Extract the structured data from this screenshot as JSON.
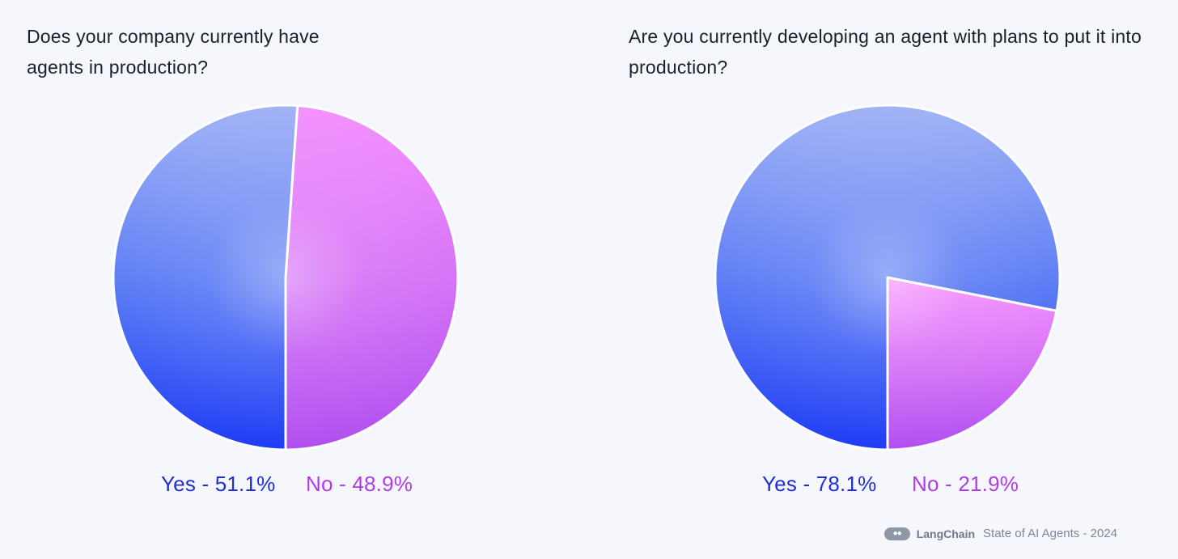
{
  "chart_data": [
    {
      "type": "pie",
      "title": "Does your company currently have agents in production?",
      "slices": [
        {
          "label": "Yes",
          "value": 51.1,
          "legend": "Yes - 51.1%",
          "color": "#1e3cf5"
        },
        {
          "label": "No",
          "value": 48.9,
          "legend": "No - 48.9%",
          "color": "#b04ff0"
        }
      ]
    },
    {
      "type": "pie",
      "title": "Are you currently developing an agent with plans to put it into production?",
      "slices": [
        {
          "label": "Yes",
          "value": 78.1,
          "legend": "Yes - 78.1%",
          "color": "#1e3cf5"
        },
        {
          "label": "No",
          "value": 21.9,
          "legend": "No - 21.9%",
          "color": "#b04ff0"
        }
      ]
    }
  ],
  "footer": {
    "logo_icon": "langchain-logo-icon",
    "brand": "LangChain",
    "text": "State of AI Agents - 2024"
  }
}
